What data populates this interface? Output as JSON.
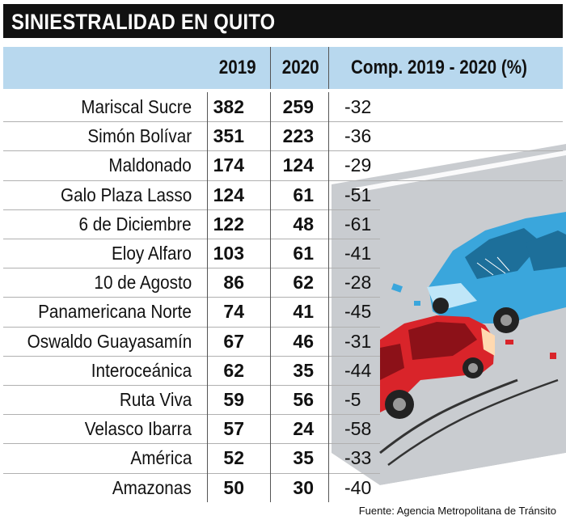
{
  "title": "SINIESTRALIDAD EN QUITO",
  "chart_data": {
    "type": "table",
    "columns": [
      "",
      "2019",
      "2020",
      "Comp. 2019 - 2020 (%)"
    ],
    "rows": [
      {
        "name": "Mariscal Sucre",
        "y2019": "382",
        "y2020": "259",
        "comp": "-32"
      },
      {
        "name": "Simón Bolívar",
        "y2019": "351",
        "y2020": "223",
        "comp": "-36"
      },
      {
        "name": "Maldonado",
        "y2019": "174",
        "y2020": "124",
        "comp": "-29"
      },
      {
        "name": "Galo Plaza Lasso",
        "y2019": "124",
        "y2020": "61",
        "comp": "-51"
      },
      {
        "name": "6 de Diciembre",
        "y2019": "122",
        "y2020": "48",
        "comp": "-61"
      },
      {
        "name": "Eloy Alfaro",
        "y2019": "103",
        "y2020": "61",
        "comp": "-41"
      },
      {
        "name": "10 de Agosto",
        "y2019": "86",
        "y2020": "62",
        "comp": "-28"
      },
      {
        "name": "Panamericana Norte",
        "y2019": "74",
        "y2020": "41",
        "comp": "-45"
      },
      {
        "name": "Oswaldo Guayasamín",
        "y2019": "67",
        "y2020": "46",
        "comp": "-31"
      },
      {
        "name": "Interoceánica",
        "y2019": "62",
        "y2020": "35",
        "comp": "-44"
      },
      {
        "name": "Ruta Viva",
        "y2019": "59",
        "y2020": "56",
        "comp": "-5"
      },
      {
        "name": "Velasco Ibarra",
        "y2019": "57",
        "y2020": "24",
        "comp": "-58"
      },
      {
        "name": "América",
        "y2019": "52",
        "y2020": "35",
        "comp": "-33"
      },
      {
        "name": "Amazonas",
        "y2019": "50",
        "y2020": "30",
        "comp": "-40"
      }
    ]
  },
  "source": "Fuente: Agencia Metropolitana de Tránsito",
  "colors": {
    "title_bg": "#111111",
    "header_bg": "#b8d8ee",
    "red_car": "#d9242a",
    "blue_car": "#3aa6dc"
  },
  "illustration": {
    "icon": "car-crash-illustration"
  }
}
